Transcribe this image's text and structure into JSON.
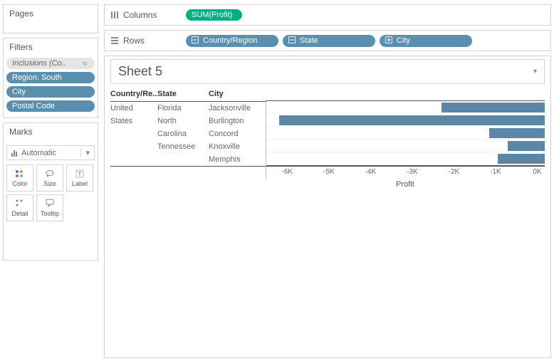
{
  "sidebar": {
    "pages_label": "Pages",
    "filters_label": "Filters",
    "filters": [
      {
        "label": "Inclusions (Co..",
        "style": "muted",
        "has_link_icon": true
      },
      {
        "label": "Region: South",
        "style": "blue"
      },
      {
        "label": "City",
        "style": "blue"
      },
      {
        "label": "Postal Code",
        "style": "blue"
      }
    ],
    "marks_label": "Marks",
    "marks_dropdown": "Automatic",
    "mark_buttons": [
      {
        "label": "Color",
        "icon": "dots-color"
      },
      {
        "label": "Size",
        "icon": "lasso"
      },
      {
        "label": "Label",
        "icon": "text-t"
      }
    ],
    "mark_buttons2": [
      {
        "label": "Detail",
        "icon": "dots-mono"
      },
      {
        "label": "Tooltip",
        "icon": "tooltip"
      }
    ]
  },
  "shelves": {
    "columns_label": "Columns",
    "rows_label": "Rows",
    "columns": [
      {
        "label": "SUM(Profit)",
        "color": "green"
      }
    ],
    "rows": [
      {
        "label": "Country/Region",
        "color": "blue",
        "icon": "minus"
      },
      {
        "label": "State",
        "color": "blue",
        "icon": "minus"
      },
      {
        "label": "City",
        "color": "blue",
        "icon": "plus"
      }
    ]
  },
  "worksheet": {
    "title": "Sheet 5",
    "headers": {
      "country": "Country/Re..",
      "state": "State",
      "city": "City"
    },
    "country": {
      "line1": "United",
      "line2": "States"
    },
    "state_groups": [
      {
        "state_line1": "Florida",
        "state_line2": "",
        "cities": [
          "Jacksonville"
        ]
      },
      {
        "state_line1": "North",
        "state_line2": "Carolina",
        "cities": [
          "Burlington",
          "Concord"
        ]
      },
      {
        "state_line1": "Tennessee",
        "state_line2": "",
        "cities": [
          "Knoxville",
          "Memphis"
        ]
      }
    ],
    "chart": {
      "type": "bar",
      "bar_color": "#5b87a6",
      "xmin": -6500,
      "xmax": 180,
      "rows": [
        {
          "key": "Jacksonville",
          "value": -2300
        },
        {
          "key": "Burlington",
          "value": -6200
        },
        {
          "key": "Concord",
          "value": -1150
        },
        {
          "key": "Knoxville",
          "value": -700
        },
        {
          "key": "Memphis",
          "value": -950
        }
      ],
      "ticks": [
        {
          "value": -6000,
          "label": "-6K"
        },
        {
          "value": -5000,
          "label": "-5K"
        },
        {
          "value": -4000,
          "label": "-4K"
        },
        {
          "value": -3000,
          "label": "-3K"
        },
        {
          "value": -2000,
          "label": "-2K"
        },
        {
          "value": -1000,
          "label": "-1K"
        },
        {
          "value": 0,
          "label": "0K"
        }
      ],
      "axis_label": "Profit"
    }
  }
}
